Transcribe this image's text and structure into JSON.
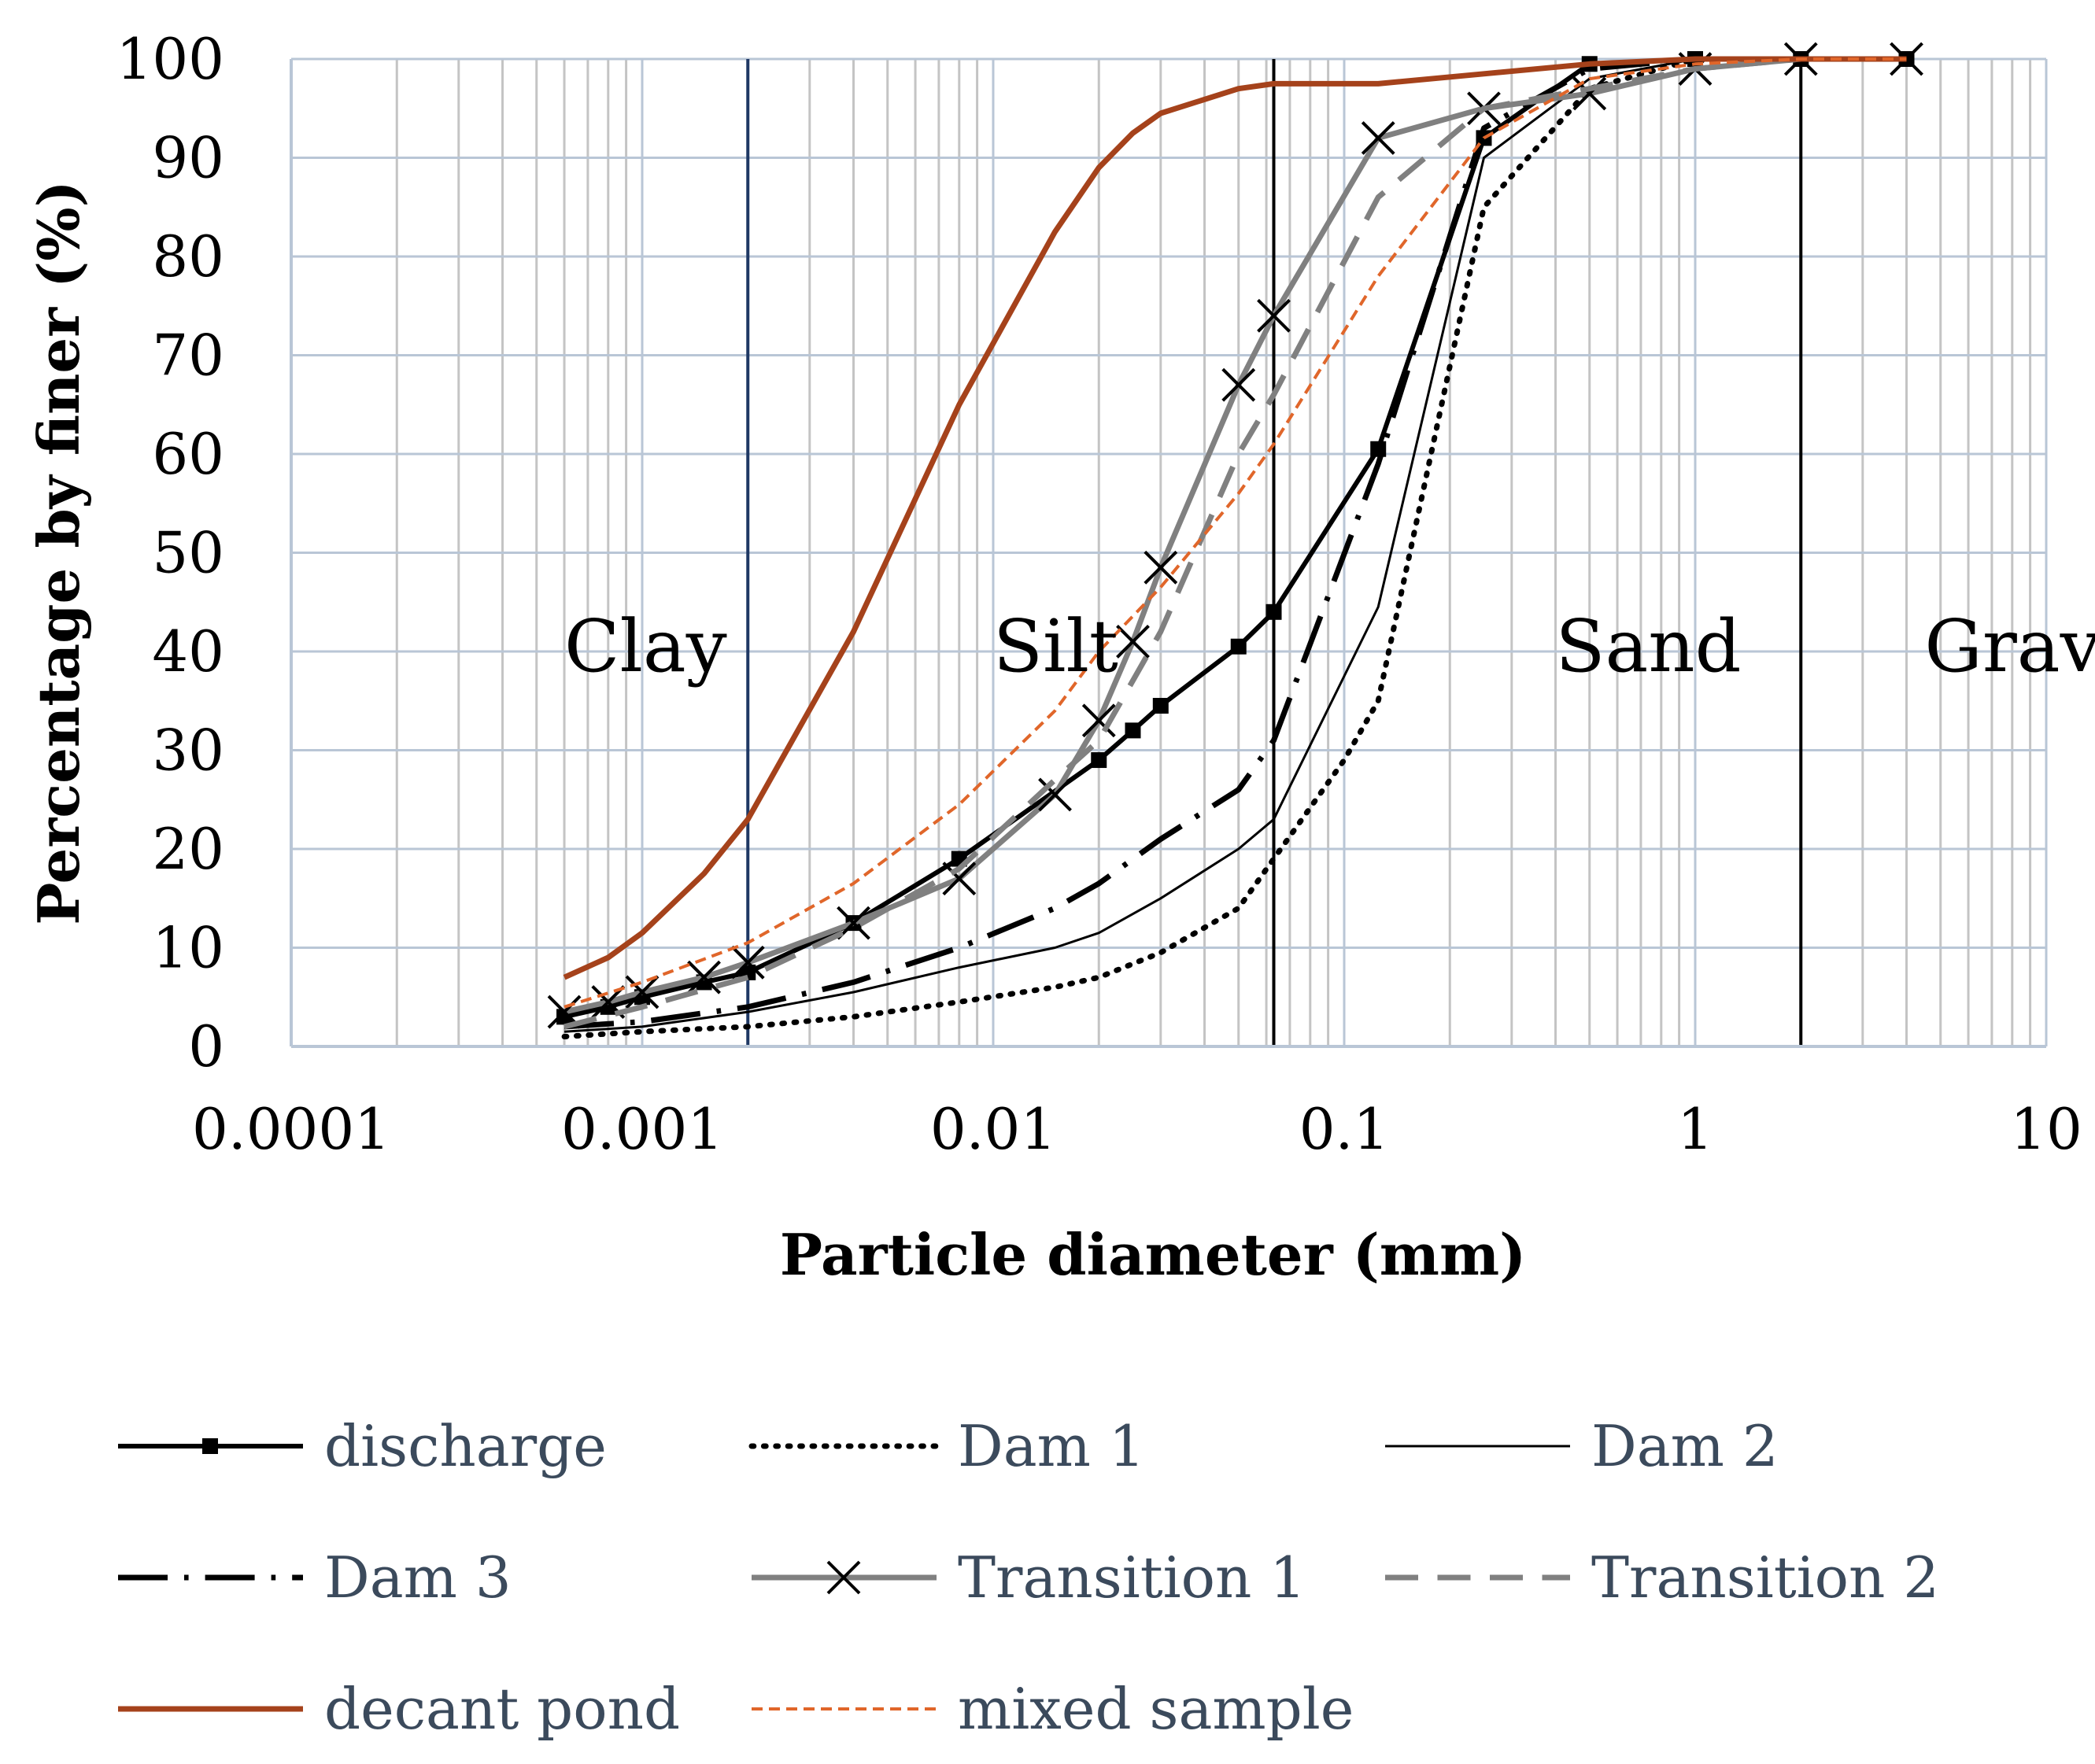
{
  "chart_data": {
    "type": "line",
    "title": "",
    "xlabel": "Particle diameter (mm)",
    "ylabel": "Percentage by finer (%)",
    "xscale": "log",
    "xlim": [
      0.0001,
      10
    ],
    "ylim": [
      0,
      100
    ],
    "grid": true,
    "x_tick_labels": [
      "0.0001",
      "0.001",
      "0.01",
      "0.1",
      "1",
      "10"
    ],
    "y_tick_labels": [
      "0",
      "10",
      "20",
      "30",
      "40",
      "50",
      "60",
      "70",
      "80",
      "90",
      "100"
    ],
    "region_labels": [
      {
        "text": "Clay",
        "x": 0.0006
      },
      {
        "text": "Silt",
        "x": 0.01
      },
      {
        "text": "Sand",
        "x": 0.4
      },
      {
        "text": "Gravel",
        "x": 4.5
      }
    ],
    "region_boundaries": [
      {
        "x": 0.002,
        "color": "#1f3864"
      },
      {
        "x": 0.063,
        "color": "#000000"
      },
      {
        "x": 2,
        "color": "#000000"
      }
    ],
    "series": [
      {
        "name": "discharge",
        "color": "#000000",
        "style": "solid",
        "width": 6,
        "marker": "square",
        "points": [
          [
            0.0006,
            3
          ],
          [
            0.0008,
            4
          ],
          [
            0.001,
            5
          ],
          [
            0.0015,
            6.5
          ],
          [
            0.002,
            7.5
          ],
          [
            0.004,
            12.5
          ],
          [
            0.008,
            19
          ],
          [
            0.02,
            29
          ],
          [
            0.025,
            32
          ],
          [
            0.03,
            34.5
          ],
          [
            0.05,
            40.5
          ],
          [
            0.063,
            44
          ],
          [
            0.125,
            60.5
          ],
          [
            0.25,
            92
          ],
          [
            0.5,
            99.5
          ],
          [
            1,
            100
          ],
          [
            2,
            100
          ],
          [
            4,
            100
          ]
        ]
      },
      {
        "name": "Dam 1",
        "color": "#000000",
        "style": "dotted",
        "width": 7,
        "marker": "none",
        "points": [
          [
            0.0006,
            1
          ],
          [
            0.001,
            1.5
          ],
          [
            0.002,
            2
          ],
          [
            0.004,
            3
          ],
          [
            0.008,
            4.5
          ],
          [
            0.015,
            6
          ],
          [
            0.02,
            7
          ],
          [
            0.03,
            9.5
          ],
          [
            0.05,
            14
          ],
          [
            0.063,
            19
          ],
          [
            0.1,
            29
          ],
          [
            0.125,
            35
          ],
          [
            0.25,
            85
          ],
          [
            0.5,
            97
          ],
          [
            1,
            100
          ],
          [
            2,
            100
          ],
          [
            4,
            100
          ]
        ]
      },
      {
        "name": "Dam 2",
        "color": "#000000",
        "style": "solid",
        "width": 3,
        "marker": "none",
        "points": [
          [
            0.0006,
            1.5
          ],
          [
            0.001,
            2
          ],
          [
            0.002,
            3.5
          ],
          [
            0.004,
            5.5
          ],
          [
            0.008,
            8
          ],
          [
            0.015,
            10
          ],
          [
            0.02,
            11.5
          ],
          [
            0.03,
            15
          ],
          [
            0.05,
            20
          ],
          [
            0.063,
            23
          ],
          [
            0.125,
            44.5
          ],
          [
            0.25,
            90
          ],
          [
            0.5,
            98
          ],
          [
            1,
            100
          ],
          [
            2,
            100
          ],
          [
            4,
            100
          ]
        ]
      },
      {
        "name": "Dam 3",
        "color": "#000000",
        "style": "dashdot",
        "width": 7,
        "marker": "none",
        "points": [
          [
            0.0006,
            2
          ],
          [
            0.001,
            2.5
          ],
          [
            0.002,
            4
          ],
          [
            0.004,
            6.5
          ],
          [
            0.008,
            10
          ],
          [
            0.015,
            14
          ],
          [
            0.02,
            16.5
          ],
          [
            0.03,
            21
          ],
          [
            0.05,
            26
          ],
          [
            0.063,
            31
          ],
          [
            0.125,
            59
          ],
          [
            0.25,
            93
          ],
          [
            0.5,
            99
          ],
          [
            1,
            100
          ],
          [
            2,
            100
          ],
          [
            4,
            100
          ]
        ]
      },
      {
        "name": "Transition 1",
        "color": "#808080",
        "style": "solid",
        "width": 7,
        "marker": "x",
        "points": [
          [
            0.0006,
            3.5
          ],
          [
            0.0008,
            4.5
          ],
          [
            0.001,
            5.5
          ],
          [
            0.0015,
            7
          ],
          [
            0.002,
            8.5
          ],
          [
            0.004,
            12.5
          ],
          [
            0.008,
            17
          ],
          [
            0.015,
            25.5
          ],
          [
            0.02,
            33
          ],
          [
            0.025,
            41
          ],
          [
            0.03,
            48.5
          ],
          [
            0.05,
            67
          ],
          [
            0.063,
            74
          ],
          [
            0.125,
            92
          ],
          [
            0.25,
            95
          ],
          [
            0.5,
            96.5
          ],
          [
            1,
            99
          ],
          [
            2,
            100
          ],
          [
            4,
            100
          ]
        ]
      },
      {
        "name": "Transition 2",
        "color": "#808080",
        "style": "dashed",
        "width": 7,
        "marker": "none",
        "points": [
          [
            0.0006,
            2
          ],
          [
            0.001,
            4
          ],
          [
            0.002,
            7
          ],
          [
            0.004,
            12
          ],
          [
            0.008,
            18
          ],
          [
            0.015,
            27
          ],
          [
            0.02,
            31
          ],
          [
            0.03,
            42
          ],
          [
            0.05,
            60
          ],
          [
            0.063,
            66
          ],
          [
            0.125,
            86
          ],
          [
            0.25,
            95
          ],
          [
            0.5,
            97
          ],
          [
            1,
            99
          ],
          [
            2,
            100
          ],
          [
            4,
            100
          ]
        ]
      },
      {
        "name": "decant pond",
        "color": "#a5421b",
        "style": "solid",
        "width": 7,
        "marker": "none",
        "points": [
          [
            0.0006,
            7
          ],
          [
            0.0008,
            9
          ],
          [
            0.001,
            11.5
          ],
          [
            0.0015,
            17.5
          ],
          [
            0.002,
            23
          ],
          [
            0.004,
            42
          ],
          [
            0.008,
            65
          ],
          [
            0.015,
            82.5
          ],
          [
            0.02,
            89
          ],
          [
            0.025,
            92.5
          ],
          [
            0.03,
            94.5
          ],
          [
            0.05,
            97
          ],
          [
            0.063,
            97.5
          ],
          [
            0.125,
            97.5
          ],
          [
            0.25,
            98.5
          ],
          [
            0.5,
            99.5
          ],
          [
            1,
            100
          ],
          [
            2,
            100
          ],
          [
            4,
            100
          ]
        ]
      },
      {
        "name": "mixed sample",
        "color": "#e0662a",
        "style": "smalldash",
        "width": 4,
        "marker": "none",
        "points": [
          [
            0.0006,
            4
          ],
          [
            0.001,
            6.5
          ],
          [
            0.002,
            10.5
          ],
          [
            0.004,
            16.5
          ],
          [
            0.008,
            24.5
          ],
          [
            0.015,
            34
          ],
          [
            0.02,
            40
          ],
          [
            0.03,
            46.5
          ],
          [
            0.05,
            56
          ],
          [
            0.063,
            61
          ],
          [
            0.125,
            78
          ],
          [
            0.25,
            92
          ],
          [
            0.5,
            98
          ],
          [
            1,
            99.5
          ],
          [
            2,
            100
          ],
          [
            4,
            100
          ]
        ]
      }
    ],
    "legend": {
      "placement": "bottom",
      "items": [
        "discharge",
        "Dam 1",
        "Dam 2",
        "Dam 3",
        "Transition 1",
        "Transition 2",
        "decant pond",
        "mixed sample"
      ]
    }
  }
}
